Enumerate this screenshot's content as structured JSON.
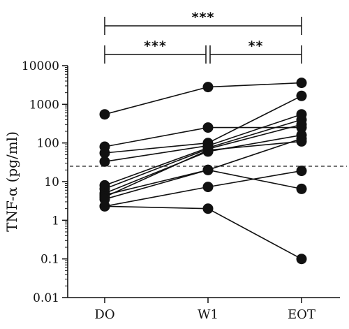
{
  "chart_data": {
    "type": "line",
    "title": "",
    "xlabel": "",
    "ylabel": "TNF-α (pg/ml)",
    "y_scale": "log",
    "ylim": [
      0.01,
      10000
    ],
    "y_ticks": [
      {
        "value": 0.01,
        "label": "0.01"
      },
      {
        "value": 0.1,
        "label": "0.1"
      },
      {
        "value": 1,
        "label": "1"
      },
      {
        "value": 10,
        "label": "10"
      },
      {
        "value": 100,
        "label": "100"
      },
      {
        "value": 1000,
        "label": "1000"
      },
      {
        "value": 10000,
        "label": "10000"
      }
    ],
    "categories": [
      "DO",
      "W1",
      "EOT"
    ],
    "threshold": {
      "value": 25,
      "style": "dashed"
    },
    "grid": false,
    "series": [
      {
        "values": [
          550,
          2800,
          3600
        ]
      },
      {
        "values": [
          80,
          250,
          250
        ]
      },
      {
        "values": [
          55,
          100,
          1650
        ]
      },
      {
        "values": [
          33,
          85,
          550
        ]
      },
      {
        "values": [
          8,
          75,
          400
        ]
      },
      {
        "values": [
          6.5,
          70,
          300
        ]
      },
      {
        "values": [
          5,
          60,
          160
        ]
      },
      {
        "values": [
          4.5,
          20,
          130
        ]
      },
      {
        "values": [
          4,
          65,
          110
        ]
      },
      {
        "values": [
          3.5,
          20,
          6.5
        ]
      },
      {
        "values": [
          2.3,
          7.3,
          19
        ]
      },
      {
        "values": [
          2.3,
          2,
          0.1
        ]
      }
    ],
    "significance": [
      {
        "from": 0,
        "to": 2,
        "label": "***"
      },
      {
        "from": 0,
        "to": 1,
        "label": "***"
      },
      {
        "from": 1,
        "to": 2,
        "label": "**"
      }
    ]
  }
}
